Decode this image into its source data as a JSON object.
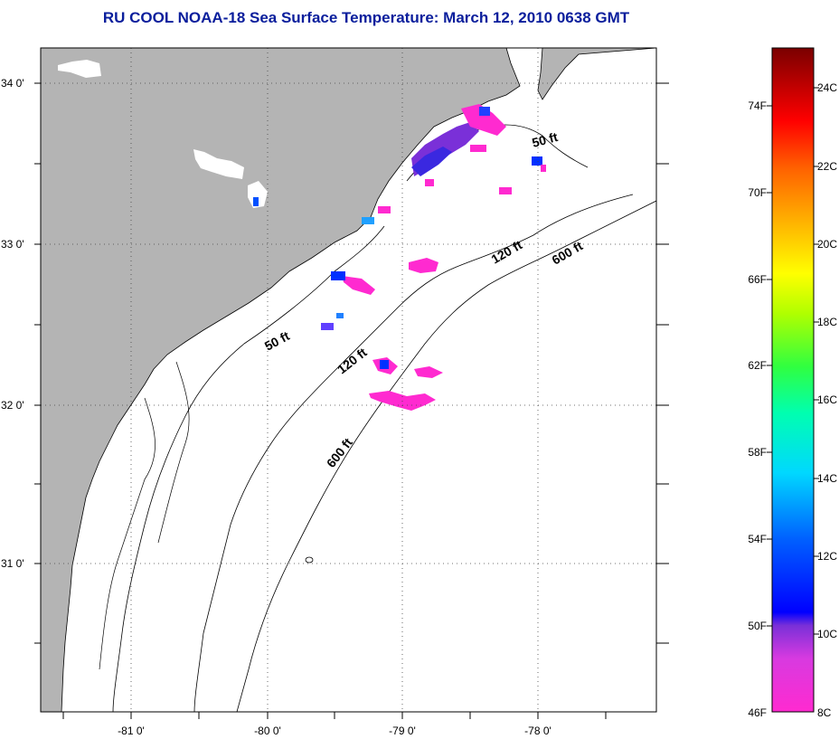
{
  "title": "RU COOL  NOAA-18  Sea Surface Temperature:  March 12, 2010 0638 GMT",
  "map": {
    "lon_labels": [
      "-81 0'",
      "-80 0'",
      "-79 0'",
      "-78 0'"
    ],
    "lat_labels": [
      "34 0'",
      "33 0'",
      "32 0'",
      "31 0'"
    ],
    "contour_labels": [
      {
        "text": "50 ft"
      },
      {
        "text": "50 ft"
      },
      {
        "text": "120 ft"
      },
      {
        "text": "120 ft"
      },
      {
        "text": "600 ft"
      },
      {
        "text": "600 ft"
      }
    ]
  },
  "colorbar": {
    "fahrenheit_labels": [
      "74F",
      "70F",
      "66F",
      "62F",
      "58F",
      "54F",
      "50F",
      "46F"
    ],
    "celsius_labels": [
      "24C",
      "22C",
      "20C",
      "18C",
      "16C",
      "14C",
      "12C",
      "10C",
      "8C"
    ],
    "colors": {
      "land": "#b4b4b4",
      "water": "#ffffff",
      "title": "#0a1e9c"
    }
  }
}
